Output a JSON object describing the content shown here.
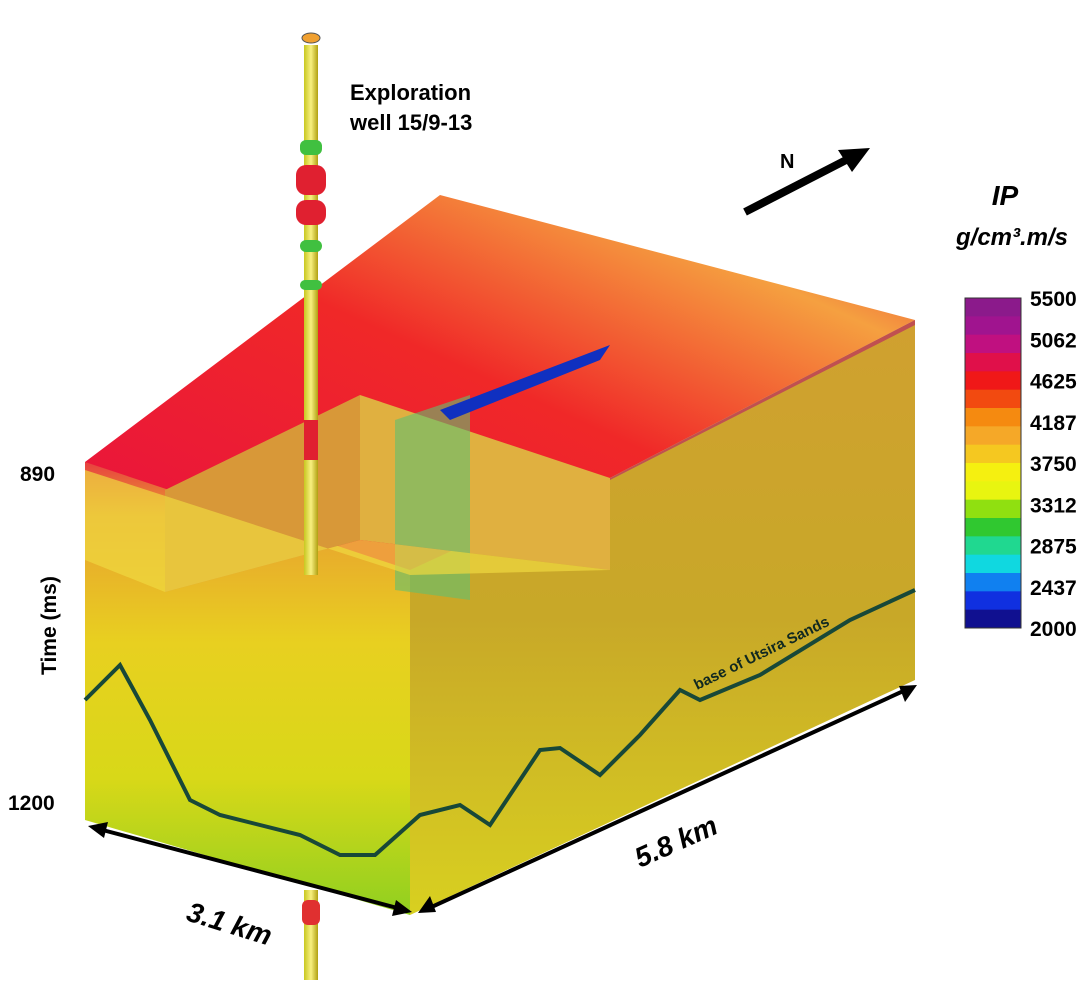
{
  "well_label": [
    "Exploration",
    "well 15/9-13"
  ],
  "north": "N",
  "colorbar": {
    "title": "IP",
    "unit": "g/cm³.m/s",
    "ticks": [
      5500,
      5062,
      4625,
      4187,
      3750,
      3312,
      2875,
      2437,
      2000
    ],
    "colors": [
      "#8b1a8b",
      "#a0148f",
      "#c01080",
      "#e0104a",
      "#f01818",
      "#f24a10",
      "#f58a10",
      "#f5a828",
      "#f5c820",
      "#f5f010",
      "#e8f510",
      "#90e010",
      "#30c830",
      "#20d890",
      "#10d8e0",
      "#1080f0",
      "#1030e0",
      "#101090"
    ]
  },
  "time_axis": {
    "label": "Time (ms)",
    "ticks": [
      890,
      1200
    ]
  },
  "horizon_label": "base of Utsira Sands",
  "dimensions": {
    "length": "5.8 km",
    "width": "3.1 km"
  }
}
